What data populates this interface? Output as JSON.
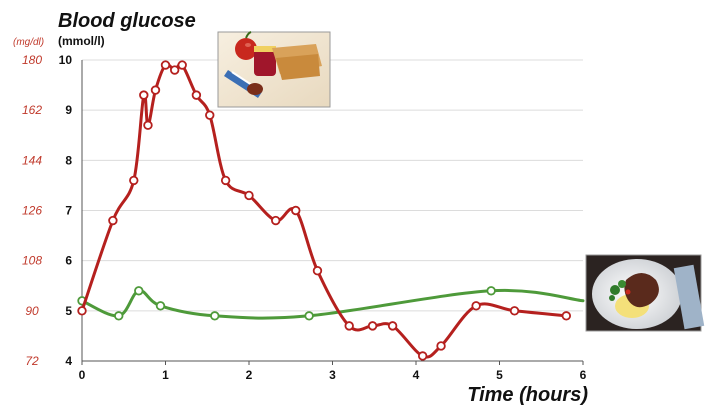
{
  "chart_data": {
    "type": "line",
    "title": "Blood glucose",
    "xlabel": "Time (hours)",
    "ylabel": "(mmol/l)",
    "ylabel_secondary": "(mg/dl)",
    "xlim": [
      0,
      6
    ],
    "ylim": [
      4,
      10
    ],
    "x_ticks": [
      "0",
      "1",
      "2",
      "3",
      "4",
      "5",
      "6"
    ],
    "y_ticks": [
      "4",
      "5",
      "6",
      "7",
      "8",
      "9",
      "10"
    ],
    "y_ticks_secondary": [
      "72",
      "90",
      "108",
      "126",
      "144",
      "162",
      "180"
    ],
    "grid": "horizontal",
    "series": [
      {
        "color": "#b5201e",
        "points": [
          [
            0,
            5.0
          ],
          [
            0.37,
            6.8
          ],
          [
            0.62,
            7.6
          ],
          [
            0.74,
            9.3
          ],
          [
            0.79,
            8.7
          ],
          [
            0.88,
            9.4
          ],
          [
            1.0,
            9.9
          ],
          [
            1.11,
            9.8
          ],
          [
            1.2,
            9.9
          ],
          [
            1.37,
            9.3
          ],
          [
            1.53,
            8.9
          ],
          [
            1.72,
            7.6
          ],
          [
            2.0,
            7.3
          ],
          [
            2.32,
            6.8
          ],
          [
            2.56,
            7.0
          ],
          [
            2.82,
            5.8
          ],
          [
            3.2,
            4.7
          ],
          [
            3.48,
            4.7
          ],
          [
            3.72,
            4.7
          ],
          [
            4.08,
            4.1
          ],
          [
            4.3,
            4.3
          ],
          [
            4.72,
            5.1
          ],
          [
            5.18,
            5.0
          ],
          [
            5.8,
            4.9
          ]
        ]
      },
      {
        "color": "#4e9a3a",
        "points": [
          [
            0,
            5.2
          ],
          [
            0.44,
            4.9
          ],
          [
            0.68,
            5.4
          ],
          [
            0.94,
            5.1
          ],
          [
            1.59,
            4.9
          ],
          [
            2.72,
            4.9
          ],
          [
            4.9,
            5.4
          ],
          [
            6.0,
            5.2
          ]
        ]
      }
    ]
  },
  "images": {
    "meal_photo_1": "photo of an apple, sandwich, chocolate bar and jam",
    "meal_photo_2": "photo of a plate with meat, mashed potatoes and salad"
  }
}
